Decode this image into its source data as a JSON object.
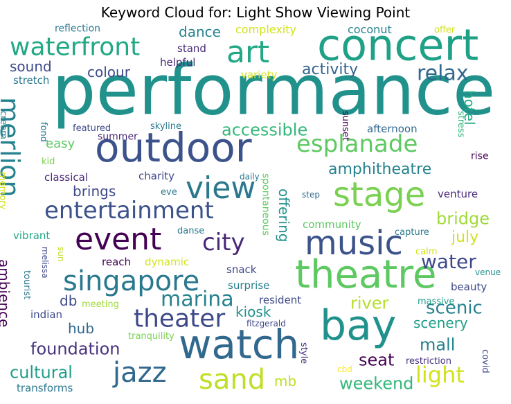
{
  "chart_data": {
    "type": "wordcloud",
    "title": "Keyword Cloud for: Light Show Viewing Point",
    "words": [
      {
        "text": "performance",
        "weight": 100,
        "color": "#21918c"
      },
      {
        "text": "concert",
        "weight": 62,
        "color": "#1fa187"
      },
      {
        "text": "outdoor",
        "weight": 55,
        "color": "#3b528b"
      },
      {
        "text": "watch",
        "weight": 55,
        "color": "#31688e"
      },
      {
        "text": "theatre",
        "weight": 55,
        "color": "#5ec962"
      },
      {
        "text": "bay",
        "weight": 55,
        "color": "#21918c"
      },
      {
        "text": "music",
        "weight": 50,
        "color": "#3b528b"
      },
      {
        "text": "event",
        "weight": 45,
        "color": "#440154"
      },
      {
        "text": "stage",
        "weight": 46,
        "color": "#7ad151"
      },
      {
        "text": "view",
        "weight": 45,
        "color": "#2a788e"
      },
      {
        "text": "art",
        "weight": 42,
        "color": "#22a884"
      },
      {
        "text": "singapore",
        "weight": 40,
        "color": "#2a788e"
      },
      {
        "text": "merlion",
        "weight": 38,
        "color": "#26828e"
      },
      {
        "text": "sand",
        "weight": 38,
        "color": "#bddf26"
      },
      {
        "text": "jazz",
        "weight": 38,
        "color": "#31688e"
      },
      {
        "text": "waterfront",
        "weight": 37,
        "color": "#22a884"
      },
      {
        "text": "entertainment",
        "weight": 34,
        "color": "#3b528b"
      },
      {
        "text": "theater",
        "weight": 35,
        "color": "#3e4989"
      },
      {
        "text": "esplanade",
        "weight": 34,
        "color": "#5ec962"
      },
      {
        "text": "city",
        "weight": 33,
        "color": "#482878"
      },
      {
        "text": "light",
        "weight": 32,
        "color": "#d2e21b"
      },
      {
        "text": "marina",
        "weight": 28,
        "color": "#26828e"
      },
      {
        "text": "relax",
        "weight": 28,
        "color": "#31688e"
      },
      {
        "text": "water",
        "weight": 26,
        "color": "#3e4989"
      },
      {
        "text": "accessible",
        "weight": 24,
        "color": "#35b779"
      },
      {
        "text": "cultural",
        "weight": 24,
        "color": "#1f9e89"
      },
      {
        "text": "foundation",
        "weight": 24,
        "color": "#46327e"
      },
      {
        "text": "river",
        "weight": 22,
        "color": "#b5de2b"
      },
      {
        "text": "scenic",
        "weight": 24,
        "color": "#26828e"
      },
      {
        "text": "mall",
        "weight": 22,
        "color": "#26828e"
      },
      {
        "text": "weekend",
        "weight": 22,
        "color": "#35b779"
      },
      {
        "text": "seat",
        "weight": 22,
        "color": "#440154"
      },
      {
        "text": "activity",
        "weight": 22,
        "color": "#33638d"
      },
      {
        "text": "bridge",
        "weight": 22,
        "color": "#a0da39"
      },
      {
        "text": "amphitheatre",
        "weight": 20,
        "color": "#26828e"
      },
      {
        "text": "brings",
        "weight": 19,
        "color": "#3e4989"
      },
      {
        "text": "colour",
        "weight": 19,
        "color": "#3e4989"
      },
      {
        "text": "sound",
        "weight": 19,
        "color": "#3e4989"
      },
      {
        "text": "dance",
        "weight": 19,
        "color": "#26828e"
      },
      {
        "text": "hotel",
        "weight": 19,
        "color": "#22a884"
      },
      {
        "text": "kiosk",
        "weight": 19,
        "color": "#21918c"
      },
      {
        "text": "hub",
        "weight": 19,
        "color": "#31688e"
      },
      {
        "text": "db",
        "weight": 19,
        "color": "#3e4989"
      },
      {
        "text": "ambience",
        "weight": 19,
        "color": "#440154"
      },
      {
        "text": "scenery",
        "weight": 18,
        "color": "#1f9e89"
      },
      {
        "text": "july",
        "weight": 18,
        "color": "#d2e21b"
      },
      {
        "text": "mb",
        "weight": 18,
        "color": "#bddf26"
      },
      {
        "text": "offering",
        "weight": 17,
        "color": "#21918c"
      },
      {
        "text": "easy",
        "weight": 16,
        "color": "#5ec962"
      },
      {
        "text": "spontaneous",
        "weight": 12,
        "color": "#5ec962"
      },
      {
        "text": "complexity",
        "weight": 13,
        "color": "#d2e21b"
      },
      {
        "text": "coconut",
        "weight": 13,
        "color": "#26828e"
      },
      {
        "text": "stand",
        "weight": 13,
        "color": "#482878"
      },
      {
        "text": "helpful",
        "weight": 13,
        "color": "#482878"
      },
      {
        "text": "variety",
        "weight": 13,
        "color": "#d2e21b"
      },
      {
        "text": "stretch",
        "weight": 13,
        "color": "#2a788e"
      },
      {
        "text": "afternoon",
        "weight": 13,
        "color": "#31688e"
      },
      {
        "text": "summer",
        "weight": 12,
        "color": "#482878"
      },
      {
        "text": "classical",
        "weight": 13,
        "color": "#482878"
      },
      {
        "text": "charity",
        "weight": 13,
        "color": "#3e4989"
      },
      {
        "text": "venture",
        "weight": 13,
        "color": "#482878"
      },
      {
        "text": "community",
        "weight": 13,
        "color": "#5ec962"
      },
      {
        "text": "vibrant",
        "weight": 13,
        "color": "#22a884"
      },
      {
        "text": "reach",
        "weight": 13,
        "color": "#440154"
      },
      {
        "text": "dynamic",
        "weight": 13,
        "color": "#d2e21b"
      },
      {
        "text": "snack",
        "weight": 13,
        "color": "#3e4989"
      },
      {
        "text": "surprise",
        "weight": 13,
        "color": "#26828e"
      },
      {
        "text": "beauty",
        "weight": 13,
        "color": "#3e4989"
      },
      {
        "text": "resident",
        "weight": 13,
        "color": "#3e4989"
      },
      {
        "text": "indian",
        "weight": 13,
        "color": "#3e4989"
      },
      {
        "text": "transforms",
        "weight": 13,
        "color": "#2a788e"
      },
      {
        "text": "kid",
        "weight": 11,
        "color": "#7ad151"
      },
      {
        "text": "reflection",
        "weight": 11,
        "color": "#2a788e"
      },
      {
        "text": "offer",
        "weight": 10,
        "color": "#d2e21b"
      },
      {
        "text": "featured",
        "weight": 11,
        "color": "#3e4989"
      },
      {
        "text": "skyline",
        "weight": 10,
        "color": "#2a788e"
      },
      {
        "text": "fond",
        "weight": 11,
        "color": "#2a788e"
      },
      {
        "text": "cream",
        "weight": 11,
        "color": "#26828e"
      },
      {
        "text": "sunset",
        "weight": 10,
        "color": "#440154"
      },
      {
        "text": "stress",
        "weight": 10,
        "color": "#35b779"
      },
      {
        "text": "rise",
        "weight": 11,
        "color": "#440154"
      },
      {
        "text": "memory",
        "weight": 10,
        "color": "#d2e21b"
      },
      {
        "text": "daily",
        "weight": 10,
        "color": "#2a788e"
      },
      {
        "text": "eve",
        "weight": 10,
        "color": "#2a788e"
      },
      {
        "text": "step",
        "weight": 10,
        "color": "#31688e"
      },
      {
        "text": "danse",
        "weight": 10,
        "color": "#2a788e"
      },
      {
        "text": "capture",
        "weight": 11,
        "color": "#2a788e"
      },
      {
        "text": "calm",
        "weight": 10,
        "color": "#d2e21b"
      },
      {
        "text": "venue",
        "weight": 10,
        "color": "#21918c"
      },
      {
        "text": "melissa",
        "weight": 9,
        "color": "#3e4989"
      },
      {
        "text": "sun",
        "weight": 9,
        "color": "#bddf26"
      },
      {
        "text": "tourist",
        "weight": 11,
        "color": "#2a788e"
      },
      {
        "text": "meeting",
        "weight": 10,
        "color": "#a0da39"
      },
      {
        "text": "massive",
        "weight": 10,
        "color": "#1f9e89"
      },
      {
        "text": "fitzgerald",
        "weight": 10,
        "color": "#3e4989"
      },
      {
        "text": "tranquility",
        "weight": 10,
        "color": "#7ad151"
      },
      {
        "text": "style",
        "weight": 11,
        "color": "#46327e"
      },
      {
        "text": "restriction",
        "weight": 11,
        "color": "#46327e"
      },
      {
        "text": "covid",
        "weight": 10,
        "color": "#3e4989"
      },
      {
        "text": "cbd",
        "weight": 10,
        "color": "#fde725"
      }
    ]
  }
}
